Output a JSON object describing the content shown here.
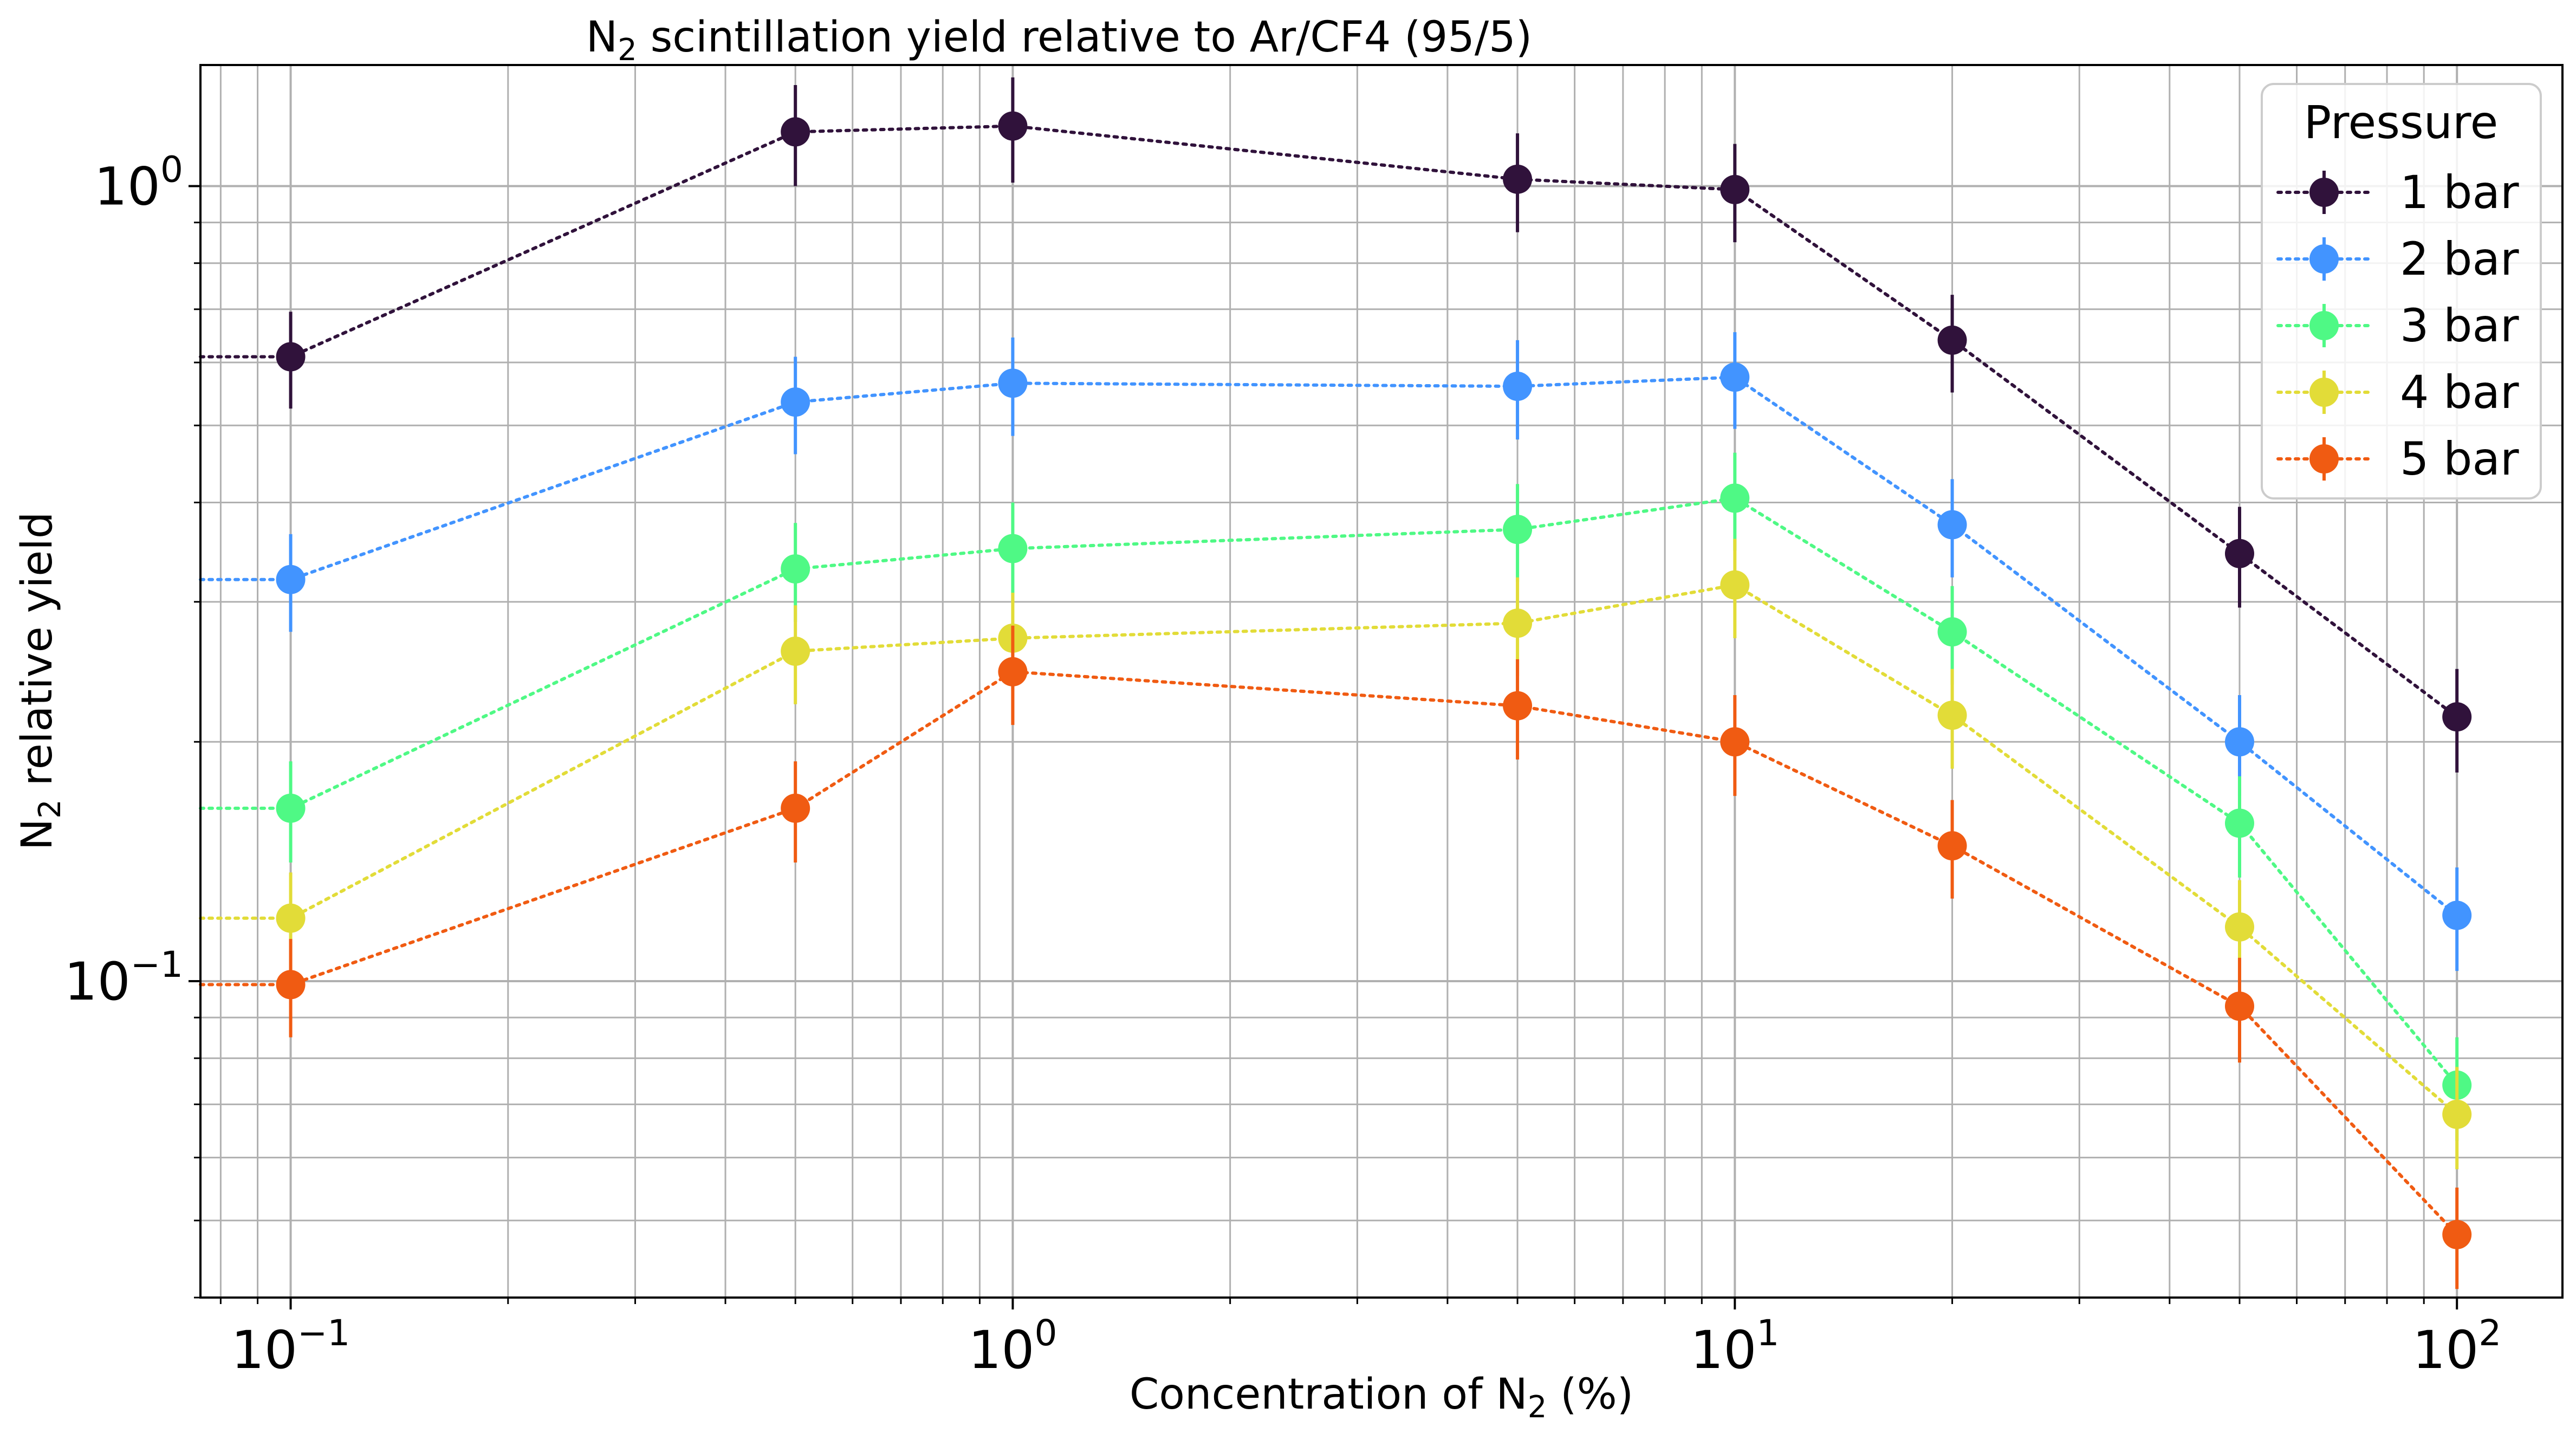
{
  "chart_data": {
    "type": "line",
    "title_main": "N",
    "title_sub": "2",
    "title_rest": " scintillation yield relative to Ar/CF4 (95/5)",
    "xlabel_main": "Concentration of N",
    "xlabel_sub": "2",
    "xlabel_rest": " (%)",
    "ylabel_main": "N",
    "ylabel_sub": "2",
    "ylabel_rest": " relative yield",
    "xscale": "log",
    "yscale": "log",
    "xlim": [
      0.075,
      140
    ],
    "ylim": [
      0.04,
      1.42
    ],
    "x_ticks": [
      {
        "value": 0.1,
        "base": "10",
        "exp": "−1"
      },
      {
        "value": 1,
        "base": "10",
        "exp": "0"
      },
      {
        "value": 10,
        "base": "10",
        "exp": "1"
      },
      {
        "value": 100,
        "base": "10",
        "exp": "2"
      }
    ],
    "y_ticks": [
      {
        "value": 0.1,
        "base": "10",
        "exp": "−1"
      },
      {
        "value": 1,
        "base": "10",
        "exp": "0"
      }
    ],
    "grid": "major and minor",
    "legend": {
      "title": "Pressure",
      "placement": "top-right"
    },
    "x": [
      0.1,
      0.5,
      1,
      5,
      10,
      20,
      50,
      100
    ],
    "series": [
      {
        "name": "1 bar",
        "color": "#30123b",
        "extend_left": 0.61,
        "values": [
          0.61,
          1.17,
          1.19,
          1.02,
          0.99,
          0.64,
          0.345,
          0.215
        ],
        "errors": [
          0.085,
          0.17,
          0.18,
          0.145,
          0.14,
          0.09,
          0.05,
          0.032
        ]
      },
      {
        "name": "2 bar",
        "color": "#4294ff",
        "extend_left": 0.32,
        "values": [
          0.32,
          0.535,
          0.565,
          0.56,
          0.575,
          0.375,
          0.2,
          0.121
        ],
        "errors": [
          0.045,
          0.075,
          0.08,
          0.08,
          0.08,
          0.053,
          0.029,
          0.018
        ]
      },
      {
        "name": "3 bar",
        "color": "#4ff985",
        "extend_left": 0.165,
        "values": [
          0.165,
          0.33,
          0.35,
          0.37,
          0.405,
          0.275,
          0.158,
          0.074
        ],
        "errors": [
          0.024,
          0.047,
          0.05,
          0.052,
          0.057,
          0.039,
          0.023,
          0.011
        ]
      },
      {
        "name": "4 bar",
        "color": "#e2dc38",
        "extend_left": 0.12,
        "values": [
          0.12,
          0.26,
          0.27,
          0.282,
          0.315,
          0.216,
          0.117,
          0.068
        ],
        "errors": [
          0.017,
          0.037,
          0.038,
          0.04,
          0.045,
          0.031,
          0.017,
          0.01
        ]
      },
      {
        "name": "5 bar",
        "color": "#f05b12",
        "extend_left": 0.099,
        "values": [
          0.099,
          0.165,
          0.245,
          0.222,
          0.2,
          0.148,
          0.093,
          0.048
        ],
        "errors": [
          0.014,
          0.024,
          0.035,
          0.032,
          0.029,
          0.021,
          0.014,
          0.007
        ]
      }
    ]
  }
}
